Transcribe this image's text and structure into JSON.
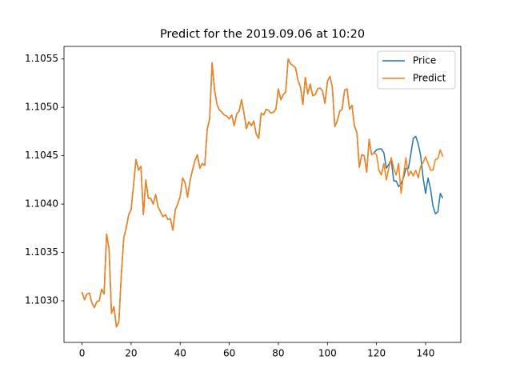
{
  "chart_data": {
    "type": "line",
    "title": "Predict for the 2019.09.06 at 10:20",
    "x": [
      0,
      1,
      2,
      3,
      4,
      5,
      6,
      7,
      8,
      9,
      10,
      11,
      12,
      13,
      14,
      15,
      16,
      17,
      18,
      19,
      20,
      21,
      22,
      23,
      24,
      25,
      26,
      27,
      28,
      29,
      30,
      31,
      32,
      33,
      34,
      35,
      36,
      37,
      38,
      39,
      40,
      41,
      42,
      43,
      44,
      45,
      46,
      47,
      48,
      49,
      50,
      51,
      52,
      53,
      54,
      55,
      56,
      57,
      58,
      59,
      60,
      61,
      62,
      63,
      64,
      65,
      66,
      67,
      68,
      69,
      70,
      71,
      72,
      73,
      74,
      75,
      76,
      77,
      78,
      79,
      80,
      81,
      82,
      83,
      84,
      85,
      86,
      87,
      88,
      89,
      90,
      91,
      92,
      93,
      94,
      95,
      96,
      97,
      98,
      99,
      100,
      101,
      102,
      103,
      104,
      105,
      106,
      107,
      108,
      109,
      110,
      111,
      112,
      113,
      114,
      115,
      116,
      117,
      118,
      119,
      120,
      121,
      122,
      123,
      124,
      125,
      126,
      127,
      128,
      129,
      130,
      131,
      132,
      133,
      134,
      135,
      136,
      137,
      138,
      139,
      140,
      141,
      142,
      143,
      144,
      145,
      146,
      147
    ],
    "series": [
      {
        "name": "Price",
        "color": "#1f77b4",
        "values": [
          1.10309,
          1.10301,
          1.10307,
          1.10308,
          1.10298,
          1.10293,
          1.10299,
          1.103,
          1.10312,
          1.10307,
          1.10369,
          1.10354,
          1.10287,
          1.10294,
          1.10273,
          1.10278,
          1.10326,
          1.10365,
          1.10375,
          1.10389,
          1.10394,
          1.1042,
          1.10446,
          1.10435,
          1.10439,
          1.10389,
          1.10425,
          1.10406,
          1.10406,
          1.104,
          1.1041,
          1.10397,
          1.10392,
          1.10387,
          1.10389,
          1.10384,
          1.10385,
          1.10373,
          1.10394,
          1.104,
          1.10408,
          1.10427,
          1.10422,
          1.10407,
          1.10424,
          1.10435,
          1.10445,
          1.10451,
          1.10437,
          1.10442,
          1.1044,
          1.10477,
          1.10488,
          1.10546,
          1.10518,
          1.10503,
          1.10497,
          1.10495,
          1.10492,
          1.10491,
          1.10488,
          1.10492,
          1.10481,
          1.10493,
          1.10496,
          1.10508,
          1.10494,
          1.10478,
          1.10485,
          1.10481,
          1.10486,
          1.10472,
          1.10468,
          1.10494,
          1.10492,
          1.10498,
          1.10497,
          1.10494,
          1.10495,
          1.10498,
          1.10519,
          1.10508,
          1.10513,
          1.10516,
          1.1055,
          1.10545,
          1.10543,
          1.10541,
          1.10528,
          1.10521,
          1.10503,
          1.10531,
          1.10514,
          1.10524,
          1.10512,
          1.10513,
          1.10519,
          1.1052,
          1.10517,
          1.10504,
          1.10527,
          1.10532,
          1.10521,
          1.1048,
          1.10486,
          1.10496,
          1.10498,
          1.10518,
          1.10519,
          1.10498,
          1.10502,
          1.10481,
          1.10474,
          1.10438,
          1.10451,
          1.1045,
          1.10433,
          1.10467,
          1.10451,
          1.10453,
          1.10456,
          1.10457,
          1.10457,
          1.10453,
          1.10437,
          1.10441,
          1.10446,
          1.10424,
          1.10424,
          1.10418,
          1.10421,
          1.10427,
          1.10437,
          1.10437,
          1.10452,
          1.10468,
          1.1047,
          1.10462,
          1.1045,
          1.10427,
          1.10411,
          1.10427,
          1.10416,
          1.10398,
          1.1039,
          1.10392,
          1.10411,
          1.10406
        ]
      },
      {
        "name": "Predict",
        "color": "#ff7f0e",
        "values": [
          1.10309,
          1.10301,
          1.10307,
          1.10308,
          1.10298,
          1.10293,
          1.10299,
          1.103,
          1.10312,
          1.10307,
          1.10369,
          1.10354,
          1.10287,
          1.10294,
          1.10273,
          1.10278,
          1.10326,
          1.10365,
          1.10375,
          1.10389,
          1.10394,
          1.1042,
          1.10446,
          1.10435,
          1.10439,
          1.10389,
          1.10425,
          1.10406,
          1.10406,
          1.104,
          1.1041,
          1.10397,
          1.10392,
          1.10387,
          1.10389,
          1.10384,
          1.10385,
          1.10373,
          1.10394,
          1.104,
          1.10408,
          1.10427,
          1.10422,
          1.10407,
          1.10424,
          1.10435,
          1.10445,
          1.10451,
          1.10437,
          1.10442,
          1.1044,
          1.10477,
          1.10488,
          1.10546,
          1.10518,
          1.10503,
          1.10497,
          1.10495,
          1.10492,
          1.10491,
          1.10488,
          1.10492,
          1.10481,
          1.10493,
          1.10496,
          1.10508,
          1.10494,
          1.10478,
          1.10485,
          1.10481,
          1.10486,
          1.10472,
          1.10468,
          1.10494,
          1.10492,
          1.10498,
          1.10497,
          1.10494,
          1.10495,
          1.10498,
          1.10519,
          1.10508,
          1.10513,
          1.10516,
          1.1055,
          1.10545,
          1.10543,
          1.10541,
          1.10528,
          1.10521,
          1.10503,
          1.10531,
          1.10514,
          1.10524,
          1.10512,
          1.10513,
          1.10519,
          1.1052,
          1.10517,
          1.10504,
          1.10527,
          1.10532,
          1.10521,
          1.1048,
          1.10486,
          1.10496,
          1.10498,
          1.10518,
          1.10519,
          1.10498,
          1.10502,
          1.10481,
          1.10474,
          1.10438,
          1.10451,
          1.1045,
          1.10433,
          1.10467,
          1.10451,
          1.10453,
          1.10451,
          1.10435,
          1.1043,
          1.10442,
          1.10425,
          1.10437,
          1.10448,
          1.10437,
          1.1043,
          1.10442,
          1.10411,
          1.1043,
          1.10448,
          1.10429,
          1.10434,
          1.10429,
          1.10435,
          1.10427,
          1.10439,
          1.10443,
          1.10449,
          1.10442,
          1.10435,
          1.10435,
          1.10446,
          1.10447,
          1.10456,
          1.10449
        ]
      }
    ],
    "xlim": [
      -7.35,
      154.35
    ],
    "xticks": [
      0,
      20,
      40,
      60,
      80,
      100,
      120,
      140
    ],
    "ylim": [
      1.10257,
      1.10563
    ],
    "yticks": [
      {
        "value": 1.103,
        "label": "1.1030"
      },
      1.1035,
      {
        "value": 1.104,
        "label": "1.1040"
      },
      1.1045,
      {
        "value": 1.105,
        "label": "1.1050"
      },
      1.1055
    ],
    "legend": "upper right",
    "grid": false
  }
}
